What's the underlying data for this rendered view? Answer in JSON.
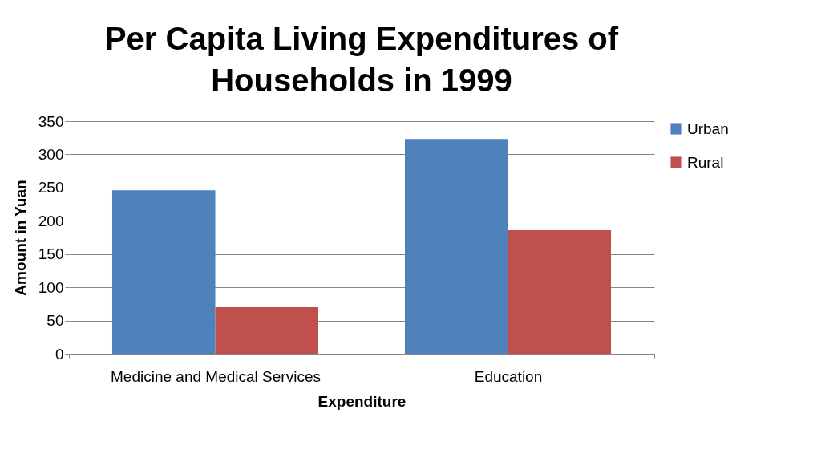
{
  "chart_data": {
    "type": "bar",
    "title": "Per Capita Living Expenditures of Households in 1999",
    "xlabel": "Expenditure",
    "ylabel": "Amount in Yuan",
    "categories": [
      "Medicine and Medical Services",
      "Education"
    ],
    "series": [
      {
        "name": "Urban",
        "color": "#4f81bd",
        "values": [
          246,
          323
        ]
      },
      {
        "name": "Rural",
        "color": "#c0504d",
        "values": [
          70,
          186
        ]
      }
    ],
    "ylim": [
      0,
      350
    ],
    "yticks": [
      0,
      50,
      100,
      150,
      200,
      250,
      300,
      350
    ],
    "grid": "y",
    "legend": "right"
  }
}
